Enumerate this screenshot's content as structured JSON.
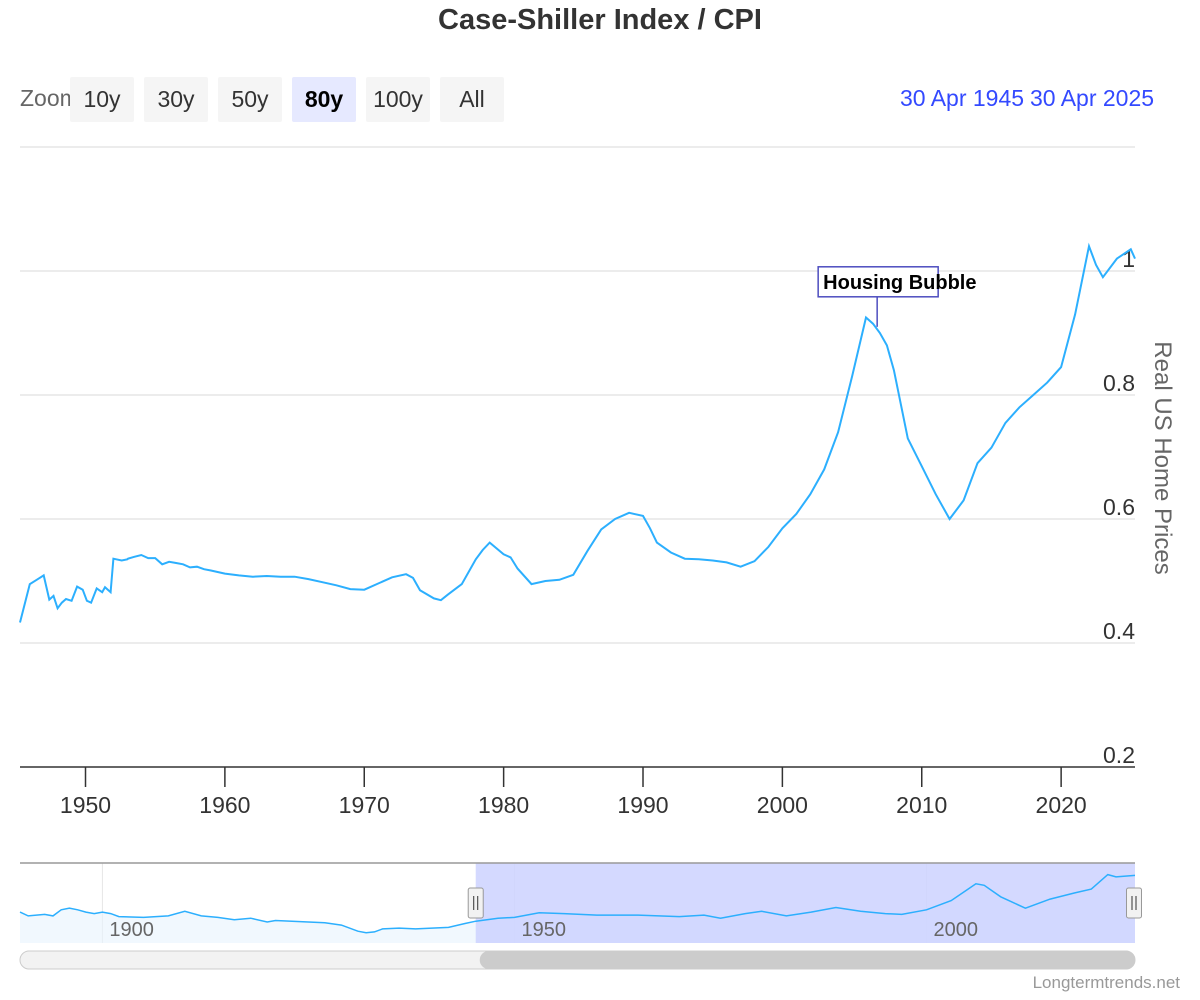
{
  "title": "Case-Shiller Index / CPI",
  "range_selector": {
    "zoom_label": "Zoom",
    "buttons": [
      "10y",
      "30y",
      "50y",
      "80y",
      "100y",
      "All"
    ],
    "active": "80y",
    "from_date": "30 Apr 1945",
    "to_date": "30 Apr 2025"
  },
  "credit": "Longtermtrends.net",
  "colors": {
    "line": "#2caffe",
    "annotation": "#4d4dbf",
    "active_button": "#e6e9ff",
    "navigator_mask": "#ccd2ff",
    "range_text": "#3349ff"
  },
  "chart_data": {
    "type": "line",
    "title": "Case-Shiller Index / CPI",
    "ylabel": "Real US Home Prices",
    "xlim": [
      1945.3,
      2025.3
    ],
    "ylim": [
      0.2,
      1.2
    ],
    "yticks": [
      0.2,
      0.4,
      0.6,
      0.8,
      1
    ],
    "ytick_labels": [
      "0.2",
      "0.4",
      "0.6",
      "0.8",
      "1"
    ],
    "xticks": [
      1950,
      1960,
      1970,
      1980,
      1990,
      2000,
      2010,
      2020
    ],
    "xtick_labels": [
      "1950",
      "1960",
      "1970",
      "1980",
      "1990",
      "2000",
      "2010",
      "2020"
    ],
    "y_axis_side": "right",
    "grid": true,
    "annotations": [
      {
        "text": "Housing Bubble",
        "x": 2006.8,
        "y": 0.91
      }
    ],
    "series": [
      {
        "x": [
          1945.3,
          1946,
          1946.5,
          1947,
          1947.4,
          1947.7,
          1948,
          1948.3,
          1948.6,
          1949,
          1949.4,
          1949.8,
          1950.1,
          1950.4,
          1950.8,
          1951.2,
          1951.4,
          1951.8,
          1952,
          1952.2,
          1952.6,
          1953,
          1953.05,
          1953.5,
          1954,
          1954.5,
          1955,
          1955.5,
          1956,
          1956.5,
          1957,
          1957.5,
          1958,
          1958.5,
          1959,
          1960,
          1961,
          1962,
          1963,
          1964,
          1965,
          1966,
          1967,
          1968,
          1969,
          1970,
          1971,
          1972,
          1973,
          1973.5,
          1974,
          1975,
          1975.5,
          1976,
          1977,
          1978,
          1978.5,
          1979,
          1980,
          1980.5,
          1981,
          1982,
          1983,
          1984,
          1985,
          1986,
          1987,
          1988,
          1989,
          1990,
          1990.5,
          1991,
          1992,
          1993,
          1994,
          1995,
          1996,
          1997,
          1998,
          1999,
          2000,
          2001,
          2002,
          2003,
          2004,
          2005,
          2006,
          2006.5,
          2007,
          2007.5,
          2008,
          2009,
          2010,
          2011,
          2012,
          2013,
          2014,
          2015,
          2016,
          2017,
          2018,
          2019,
          2020,
          2021,
          2022,
          2022.5,
          2023,
          2024,
          2025,
          2025.3
        ],
        "y": [
          0.433,
          0.495,
          0.502,
          0.509,
          0.47,
          0.476,
          0.456,
          0.465,
          0.471,
          0.468,
          0.491,
          0.486,
          0.468,
          0.465,
          0.488,
          0.482,
          0.49,
          0.482,
          0.536,
          0.535,
          0.533,
          0.535,
          0.536,
          0.539,
          0.542,
          0.537,
          0.537,
          0.527,
          0.531,
          0.529,
          0.527,
          0.522,
          0.523,
          0.519,
          0.517,
          0.512,
          0.509,
          0.507,
          0.508,
          0.507,
          0.507,
          0.503,
          0.498,
          0.493,
          0.487,
          0.486,
          0.496,
          0.506,
          0.511,
          0.505,
          0.485,
          0.472,
          0.469,
          0.478,
          0.495,
          0.535,
          0.55,
          0.562,
          0.543,
          0.538,
          0.52,
          0.495,
          0.5,
          0.502,
          0.51,
          0.548,
          0.583,
          0.6,
          0.61,
          0.605,
          0.585,
          0.562,
          0.546,
          0.536,
          0.535,
          0.533,
          0.53,
          0.523,
          0.532,
          0.555,
          0.585,
          0.608,
          0.64,
          0.68,
          0.74,
          0.83,
          0.925,
          0.915,
          0.9,
          0.88,
          0.84,
          0.73,
          0.685,
          0.64,
          0.6,
          0.63,
          0.69,
          0.715,
          0.755,
          0.78,
          0.8,
          0.82,
          0.845,
          0.93,
          1.04,
          1.01,
          0.99,
          1.02,
          1.035,
          1.02
        ]
      }
    ]
  },
  "navigator": {
    "xlim": [
      1890,
      2025.3
    ],
    "tick_labels": [
      "1900",
      "1950",
      "2000"
    ],
    "tick_values": [
      1900,
      1950,
      2000
    ],
    "selection": [
      1945.3,
      2025.3
    ],
    "series_x": [
      1890,
      1891,
      1893,
      1894,
      1895,
      1896,
      1897,
      1898,
      1899,
      1900,
      1901,
      1902,
      1905,
      1908,
      1910,
      1912,
      1914,
      1916,
      1918,
      1920,
      1921,
      1923,
      1925,
      1927,
      1929,
      1931,
      1932,
      1933,
      1934,
      1936,
      1938,
      1940,
      1942,
      1944,
      1945.3,
      1948,
      1950,
      1953,
      1956,
      1960,
      1965,
      1970,
      1973,
      1975,
      1978,
      1980,
      1983,
      1986,
      1989,
      1992,
      1995,
      1997,
      2000,
      2003,
      2006,
      2007,
      2009,
      2012,
      2015,
      2018,
      2020,
      2022,
      2023,
      2025.3
    ],
    "series_y": [
      0.55,
      0.5,
      0.52,
      0.5,
      0.58,
      0.6,
      0.58,
      0.55,
      0.53,
      0.55,
      0.53,
      0.49,
      0.48,
      0.5,
      0.56,
      0.5,
      0.48,
      0.45,
      0.47,
      0.42,
      0.44,
      0.43,
      0.42,
      0.41,
      0.38,
      0.3,
      0.28,
      0.29,
      0.33,
      0.34,
      0.33,
      0.34,
      0.35,
      0.4,
      0.43,
      0.47,
      0.48,
      0.54,
      0.53,
      0.51,
      0.51,
      0.49,
      0.51,
      0.47,
      0.53,
      0.56,
      0.5,
      0.55,
      0.61,
      0.56,
      0.53,
      0.52,
      0.58,
      0.7,
      0.92,
      0.9,
      0.75,
      0.6,
      0.72,
      0.8,
      0.85,
      1.04,
      1.01,
      1.03
    ]
  }
}
